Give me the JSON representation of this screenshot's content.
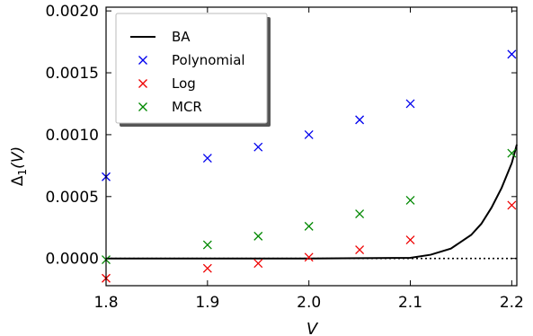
{
  "chart_data": {
    "type": "scatter",
    "xlabel_base": "V",
    "ylabel_base": "Δ",
    "ylabel_sub": "1",
    "ylabel_arg": "(V)",
    "xlim": [
      1.8,
      2.205
    ],
    "ylim": [
      -0.00022,
      0.00203
    ],
    "x_ticks": [
      1.8,
      1.9,
      2.0,
      2.1,
      2.2
    ],
    "x_tick_labels": [
      "1.8",
      "1.9",
      "2.0",
      "2.1",
      "2.2"
    ],
    "y_ticks": [
      0.0,
      0.0005,
      0.001,
      0.0015,
      0.002
    ],
    "y_tick_labels": [
      "0.0000",
      "0.0005",
      "0.0010",
      "0.0015",
      "0.0020"
    ],
    "grid": false,
    "legend_position": "top-left",
    "series": [
      {
        "name": "BA",
        "kind": "line",
        "color": "#000000",
        "x": [
          1.8,
          1.9,
          2.0,
          2.1,
          2.12,
          2.14,
          2.16,
          2.17,
          2.18,
          2.19,
          2.2,
          2.205
        ],
        "y": [
          0.0,
          0.0,
          0.0,
          5e-06,
          3e-05,
          8e-05,
          0.00019,
          0.00028,
          0.00041,
          0.00057,
          0.00077,
          0.00092
        ]
      },
      {
        "name": "Polynomial",
        "kind": "scatter",
        "color": "#0000ee",
        "x": [
          1.8,
          1.9,
          1.95,
          2.0,
          2.05,
          2.1,
          2.2
        ],
        "y": [
          0.00066,
          0.00081,
          0.0009,
          0.001,
          0.00112,
          0.00125,
          0.00165
        ]
      },
      {
        "name": "Log",
        "kind": "scatter",
        "color": "#ee0000",
        "x": [
          1.8,
          1.9,
          1.95,
          2.0,
          2.05,
          2.1,
          2.2
        ],
        "y": [
          -0.00016,
          -8e-05,
          -4e-05,
          1e-05,
          7e-05,
          0.00015,
          0.00043
        ]
      },
      {
        "name": "MCR",
        "kind": "scatter",
        "color": "#008800",
        "x": [
          1.8,
          1.9,
          1.95,
          2.0,
          2.05,
          2.1,
          2.2
        ],
        "y": [
          -1e-05,
          0.00011,
          0.00018,
          0.00026,
          0.00036,
          0.00047,
          0.00085
        ]
      }
    ],
    "reference_line": {
      "y": 0.0,
      "style": "dotted",
      "color": "#000000"
    }
  }
}
